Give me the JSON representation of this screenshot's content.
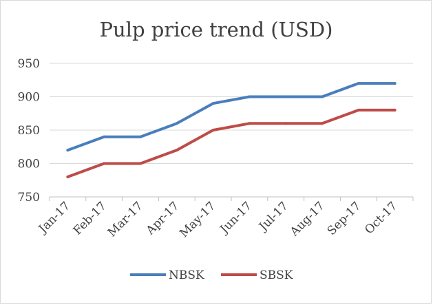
{
  "chart_data": {
    "type": "line",
    "title": "Pulp price trend (USD)",
    "categories": [
      "Jan-17",
      "Feb-17",
      "Mar-17",
      "Apr-17",
      "May-17",
      "Jun-17",
      "Jul-17",
      "Aug-17",
      "Sep-17",
      "Oct-17"
    ],
    "series": [
      {
        "name": "NBSK",
        "color": "#4a7ebb",
        "values": [
          820,
          840,
          840,
          860,
          890,
          900,
          900,
          900,
          920,
          920
        ]
      },
      {
        "name": "SBSK",
        "color": "#be4b48",
        "values": [
          780,
          800,
          800,
          820,
          850,
          860,
          860,
          860,
          880,
          880
        ]
      }
    ],
    "ylim": [
      750,
      950
    ],
    "yticks": [
      750,
      800,
      850,
      900,
      950
    ],
    "grid": true,
    "legend": "bottom"
  }
}
